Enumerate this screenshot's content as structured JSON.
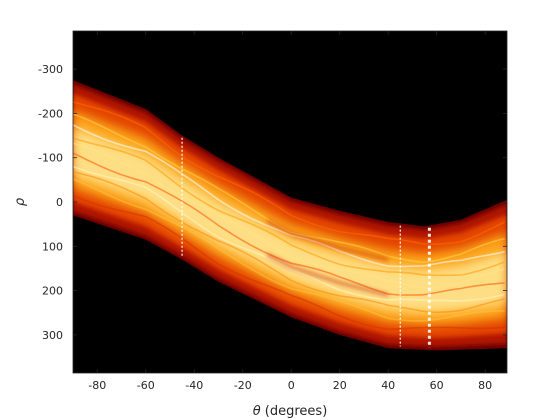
{
  "chart_data": {
    "type": "heatmap",
    "title": "",
    "xlabel_symbol": "θ",
    "xlabel_text": " (degrees)",
    "ylabel": "ρ",
    "xlim": [
      -90,
      89
    ],
    "ylim": [
      -386,
      386
    ],
    "y_reversed": true,
    "colormap": "hot",
    "background_color": "#000000",
    "x_ticks": [
      -80,
      -60,
      -40,
      -20,
      0,
      20,
      40,
      60,
      80
    ],
    "y_ticks": [
      -300,
      -200,
      -100,
      0,
      100,
      200,
      300
    ],
    "y_tick_labels": [
      "-300",
      "-200",
      "-100",
      "0",
      "100",
      "200",
      "300"
    ],
    "band": {
      "description_points_center": [
        [
          -90,
          60
        ],
        [
          -60,
          -5
        ],
        [
          -45,
          10
        ],
        [
          -30,
          50
        ],
        [
          0,
          110
        ],
        [
          20,
          150
        ],
        [
          40,
          170
        ],
        [
          60,
          175
        ],
        [
          89,
          170
        ]
      ],
      "upper_edge": [
        [
          -90,
          -275
        ],
        [
          -60,
          -210
        ],
        [
          -45,
          -150
        ],
        [
          -30,
          -100
        ],
        [
          0,
          -10
        ],
        [
          20,
          20
        ],
        [
          40,
          45
        ],
        [
          55,
          55
        ],
        [
          70,
          40
        ],
        [
          89,
          -5
        ]
      ],
      "lower_edge": [
        [
          -90,
          30
        ],
        [
          -60,
          85
        ],
        [
          -45,
          130
        ],
        [
          -30,
          180
        ],
        [
          0,
          260
        ],
        [
          20,
          300
        ],
        [
          40,
          330
        ],
        [
          60,
          335
        ],
        [
          89,
          330
        ]
      ]
    },
    "bright_lines": [
      -45,
      45,
      57
    ]
  }
}
